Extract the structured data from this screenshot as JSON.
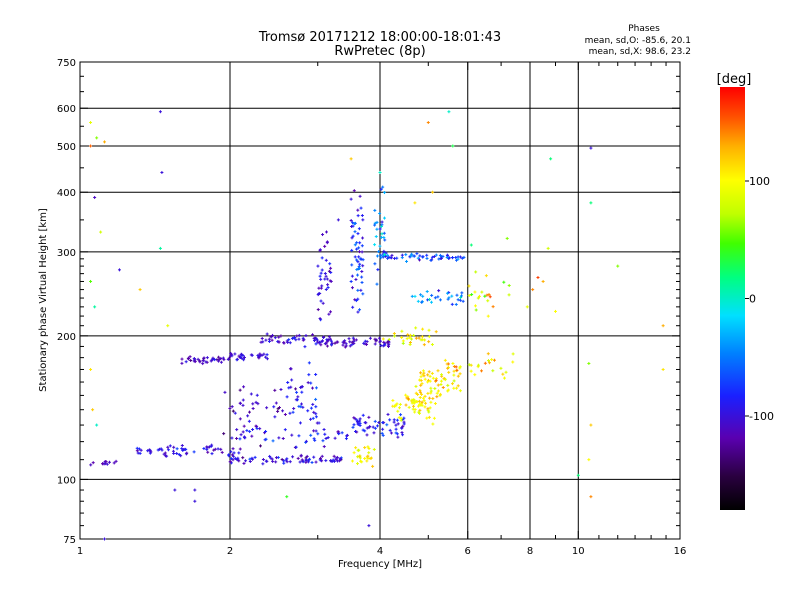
{
  "title": {
    "line1": "Tromsø 20171212 18:00:00-18:01:43",
    "line2": "RwPretec (8p)"
  },
  "phases": {
    "heading": "Phases",
    "line_o": "mean, sd,O: -85.6, 20.1",
    "line_x": "mean, sd,X:  98.6, 23.2"
  },
  "colorbar": {
    "title": "[deg]",
    "ticks": [
      {
        "value": 100,
        "label": "100"
      },
      {
        "value": 0,
        "label": "0"
      },
      {
        "value": -100,
        "label": "-100"
      }
    ],
    "range": [
      -180,
      180
    ],
    "colors": [
      "#000000",
      "#2a0040",
      "#5a00b0",
      "#1a20ff",
      "#0080ff",
      "#00e0ff",
      "#00ff80",
      "#40ff00",
      "#c0ff00",
      "#ffff00",
      "#ffb000",
      "#ff5000",
      "#ff0000"
    ]
  },
  "chart_data": {
    "type": "scatter",
    "xlabel": "Frequency [MHz]",
    "ylabel": "Stationary phase Virtual Height [km]",
    "xscale": "log",
    "yscale": "log",
    "xlim": [
      1,
      16
    ],
    "ylim": [
      75,
      750
    ],
    "xticks": [
      1,
      2,
      4,
      6,
      8,
      10,
      16
    ],
    "yticks": [
      75,
      100,
      200,
      300,
      400,
      500,
      600,
      750
    ],
    "xgrid": [
      2,
      4,
      6,
      8,
      10
    ],
    "ygrid": [
      100,
      200,
      300,
      400,
      500,
      600
    ],
    "grid": true,
    "color_variable": "phase [deg]",
    "color_range": [
      -180,
      180
    ],
    "traces": [
      {
        "x_start": 1.05,
        "x_end": 1.2,
        "y": 108,
        "n": 12,
        "jitter": 0.01,
        "phase": -110,
        "phase_sd": 15
      },
      {
        "x_start": 1.3,
        "x_end": 2.1,
        "y": 115,
        "n": 60,
        "jitter": 0.02,
        "phase": -100,
        "phase_sd": 18
      },
      {
        "x_start": 2.0,
        "x_end": 3.4,
        "y": 110,
        "n": 80,
        "jitter": 0.015,
        "phase": -100,
        "phase_sd": 20
      },
      {
        "x_start": 2.0,
        "x_end": 3.5,
        "y": 125,
        "n": 50,
        "jitter": 0.04,
        "phase": -95,
        "phase_sd": 25
      },
      {
        "x_start": 1.6,
        "x_end": 2.0,
        "y": 178,
        "n": 40,
        "jitter": 0.012,
        "phase": -110,
        "phase_sd": 15
      },
      {
        "x_start": 2.0,
        "x_end": 2.4,
        "y": 181,
        "n": 30,
        "jitter": 0.015,
        "phase": -100,
        "phase_sd": 15
      },
      {
        "x_start": 2.3,
        "x_end": 3.2,
        "y": 196,
        "n": 60,
        "jitter": 0.02,
        "phase": -100,
        "phase_sd": 18
      },
      {
        "x_start": 3.0,
        "x_end": 4.2,
        "y": 193,
        "n": 55,
        "jitter": 0.02,
        "phase": -110,
        "phase_sd": 15
      },
      {
        "x_start": 4.0,
        "x_end": 5.2,
        "y": 198,
        "n": 30,
        "jitter": 0.03,
        "phase": 100,
        "phase_sd": 30
      },
      {
        "x_start": 3.5,
        "x_end": 4.5,
        "y": 130,
        "n": 60,
        "jitter": 0.04,
        "phase": -90,
        "phase_sd": 25
      },
      {
        "x_start": 3.5,
        "x_end": 3.9,
        "y": 112,
        "n": 25,
        "jitter": 0.03,
        "phase": 100,
        "phase_sd": 20
      },
      {
        "x_start": 4.2,
        "x_end": 5.2,
        "y": 140,
        "n": 40,
        "jitter": 0.05,
        "phase": 100,
        "phase_sd": 25
      },
      {
        "x_start": 4.8,
        "x_end": 5.8,
        "y": 165,
        "n": 60,
        "jitter": 0.05,
        "phase": 110,
        "phase_sd": 25
      },
      {
        "x_start": 4.5,
        "x_end": 5.3,
        "y": 150,
        "n": 35,
        "jitter": 0.04,
        "phase": 110,
        "phase_sd": 20
      },
      {
        "x_start": 4.0,
        "x_end": 5.9,
        "y": 292,
        "n": 60,
        "jitter": 0.015,
        "phase": -70,
        "phase_sd": 30
      },
      {
        "x_start": 4.6,
        "x_end": 5.9,
        "y": 240,
        "n": 30,
        "jitter": 0.03,
        "phase": -40,
        "phase_sd": 40
      },
      {
        "x_start": 3.0,
        "x_end": 3.2,
        "y": 260,
        "n": 40,
        "jitter": 0.15,
        "phase": -100,
        "phase_sd": 20
      },
      {
        "x_start": 3.5,
        "x_end": 3.7,
        "y": 300,
        "n": 60,
        "jitter": 0.2,
        "phase": -80,
        "phase_sd": 30
      },
      {
        "x_start": 3.9,
        "x_end": 4.1,
        "y": 320,
        "n": 30,
        "jitter": 0.15,
        "phase": -40,
        "phase_sd": 40
      },
      {
        "x_start": 2.6,
        "x_end": 3.0,
        "y": 150,
        "n": 40,
        "jitter": 0.1,
        "phase": -90,
        "phase_sd": 25
      },
      {
        "x_start": 1.9,
        "x_end": 2.6,
        "y": 140,
        "n": 40,
        "jitter": 0.1,
        "phase": -110,
        "phase_sd": 20
      },
      {
        "x_start": 6.0,
        "x_end": 7.5,
        "y": 250,
        "n": 20,
        "jitter": 0.08,
        "phase": 90,
        "phase_sd": 40
      },
      {
        "x_start": 6.0,
        "x_end": 7.5,
        "y": 175,
        "n": 20,
        "jitter": 0.05,
        "phase": 110,
        "phase_sd": 30
      }
    ],
    "scatter_points": [
      [
        1.05,
        560,
        90
      ],
      [
        1.08,
        520,
        60
      ],
      [
        1.12,
        510,
        130
      ],
      [
        1.05,
        500,
        150
      ],
      [
        1.07,
        390,
        -110
      ],
      [
        1.1,
        330,
        80
      ],
      [
        1.2,
        275,
        -100
      ],
      [
        1.32,
        250,
        120
      ],
      [
        1.45,
        590,
        -100
      ],
      [
        1.46,
        440,
        -100
      ],
      [
        1.45,
        305,
        10
      ],
      [
        1.5,
        210,
        90
      ],
      [
        1.55,
        95,
        -100
      ],
      [
        1.7,
        90,
        -100
      ],
      [
        1.7,
        95,
        -100
      ],
      [
        2.6,
        92,
        40
      ],
      [
        1.12,
        75,
        -100
      ],
      [
        1.05,
        170,
        110
      ],
      [
        1.06,
        140,
        120
      ],
      [
        1.08,
        130,
        0
      ],
      [
        1.05,
        260,
        50
      ],
      [
        1.07,
        230,
        10
      ],
      [
        3.5,
        470,
        120
      ],
      [
        3.3,
        350,
        -100
      ],
      [
        5.0,
        560,
        140
      ],
      [
        5.5,
        590,
        0
      ],
      [
        5.6,
        500,
        30
      ],
      [
        8.8,
        470,
        20
      ],
      [
        10.6,
        495,
        -100
      ],
      [
        10.6,
        380,
        20
      ],
      [
        12.0,
        280,
        60
      ],
      [
        10.5,
        175,
        60
      ],
      [
        10.6,
        130,
        120
      ],
      [
        10.5,
        110,
        100
      ],
      [
        10.6,
        92,
        140
      ],
      [
        14.8,
        210,
        130
      ],
      [
        14.8,
        170,
        110
      ],
      [
        10.0,
        102,
        20
      ],
      [
        8.5,
        260,
        130
      ],
      [
        8.3,
        265,
        160
      ],
      [
        8.1,
        250,
        140
      ],
      [
        9.0,
        225,
        100
      ],
      [
        8.7,
        305,
        80
      ],
      [
        7.9,
        230,
        90
      ],
      [
        3.8,
        80,
        -100
      ],
      [
        4.0,
        440,
        0
      ],
      [
        4.05,
        410,
        -50
      ],
      [
        4.7,
        380,
        110
      ],
      [
        5.1,
        400,
        120
      ],
      [
        6.1,
        310,
        20
      ],
      [
        7.2,
        320,
        60
      ],
      [
        6.3,
        240,
        80
      ]
    ]
  }
}
